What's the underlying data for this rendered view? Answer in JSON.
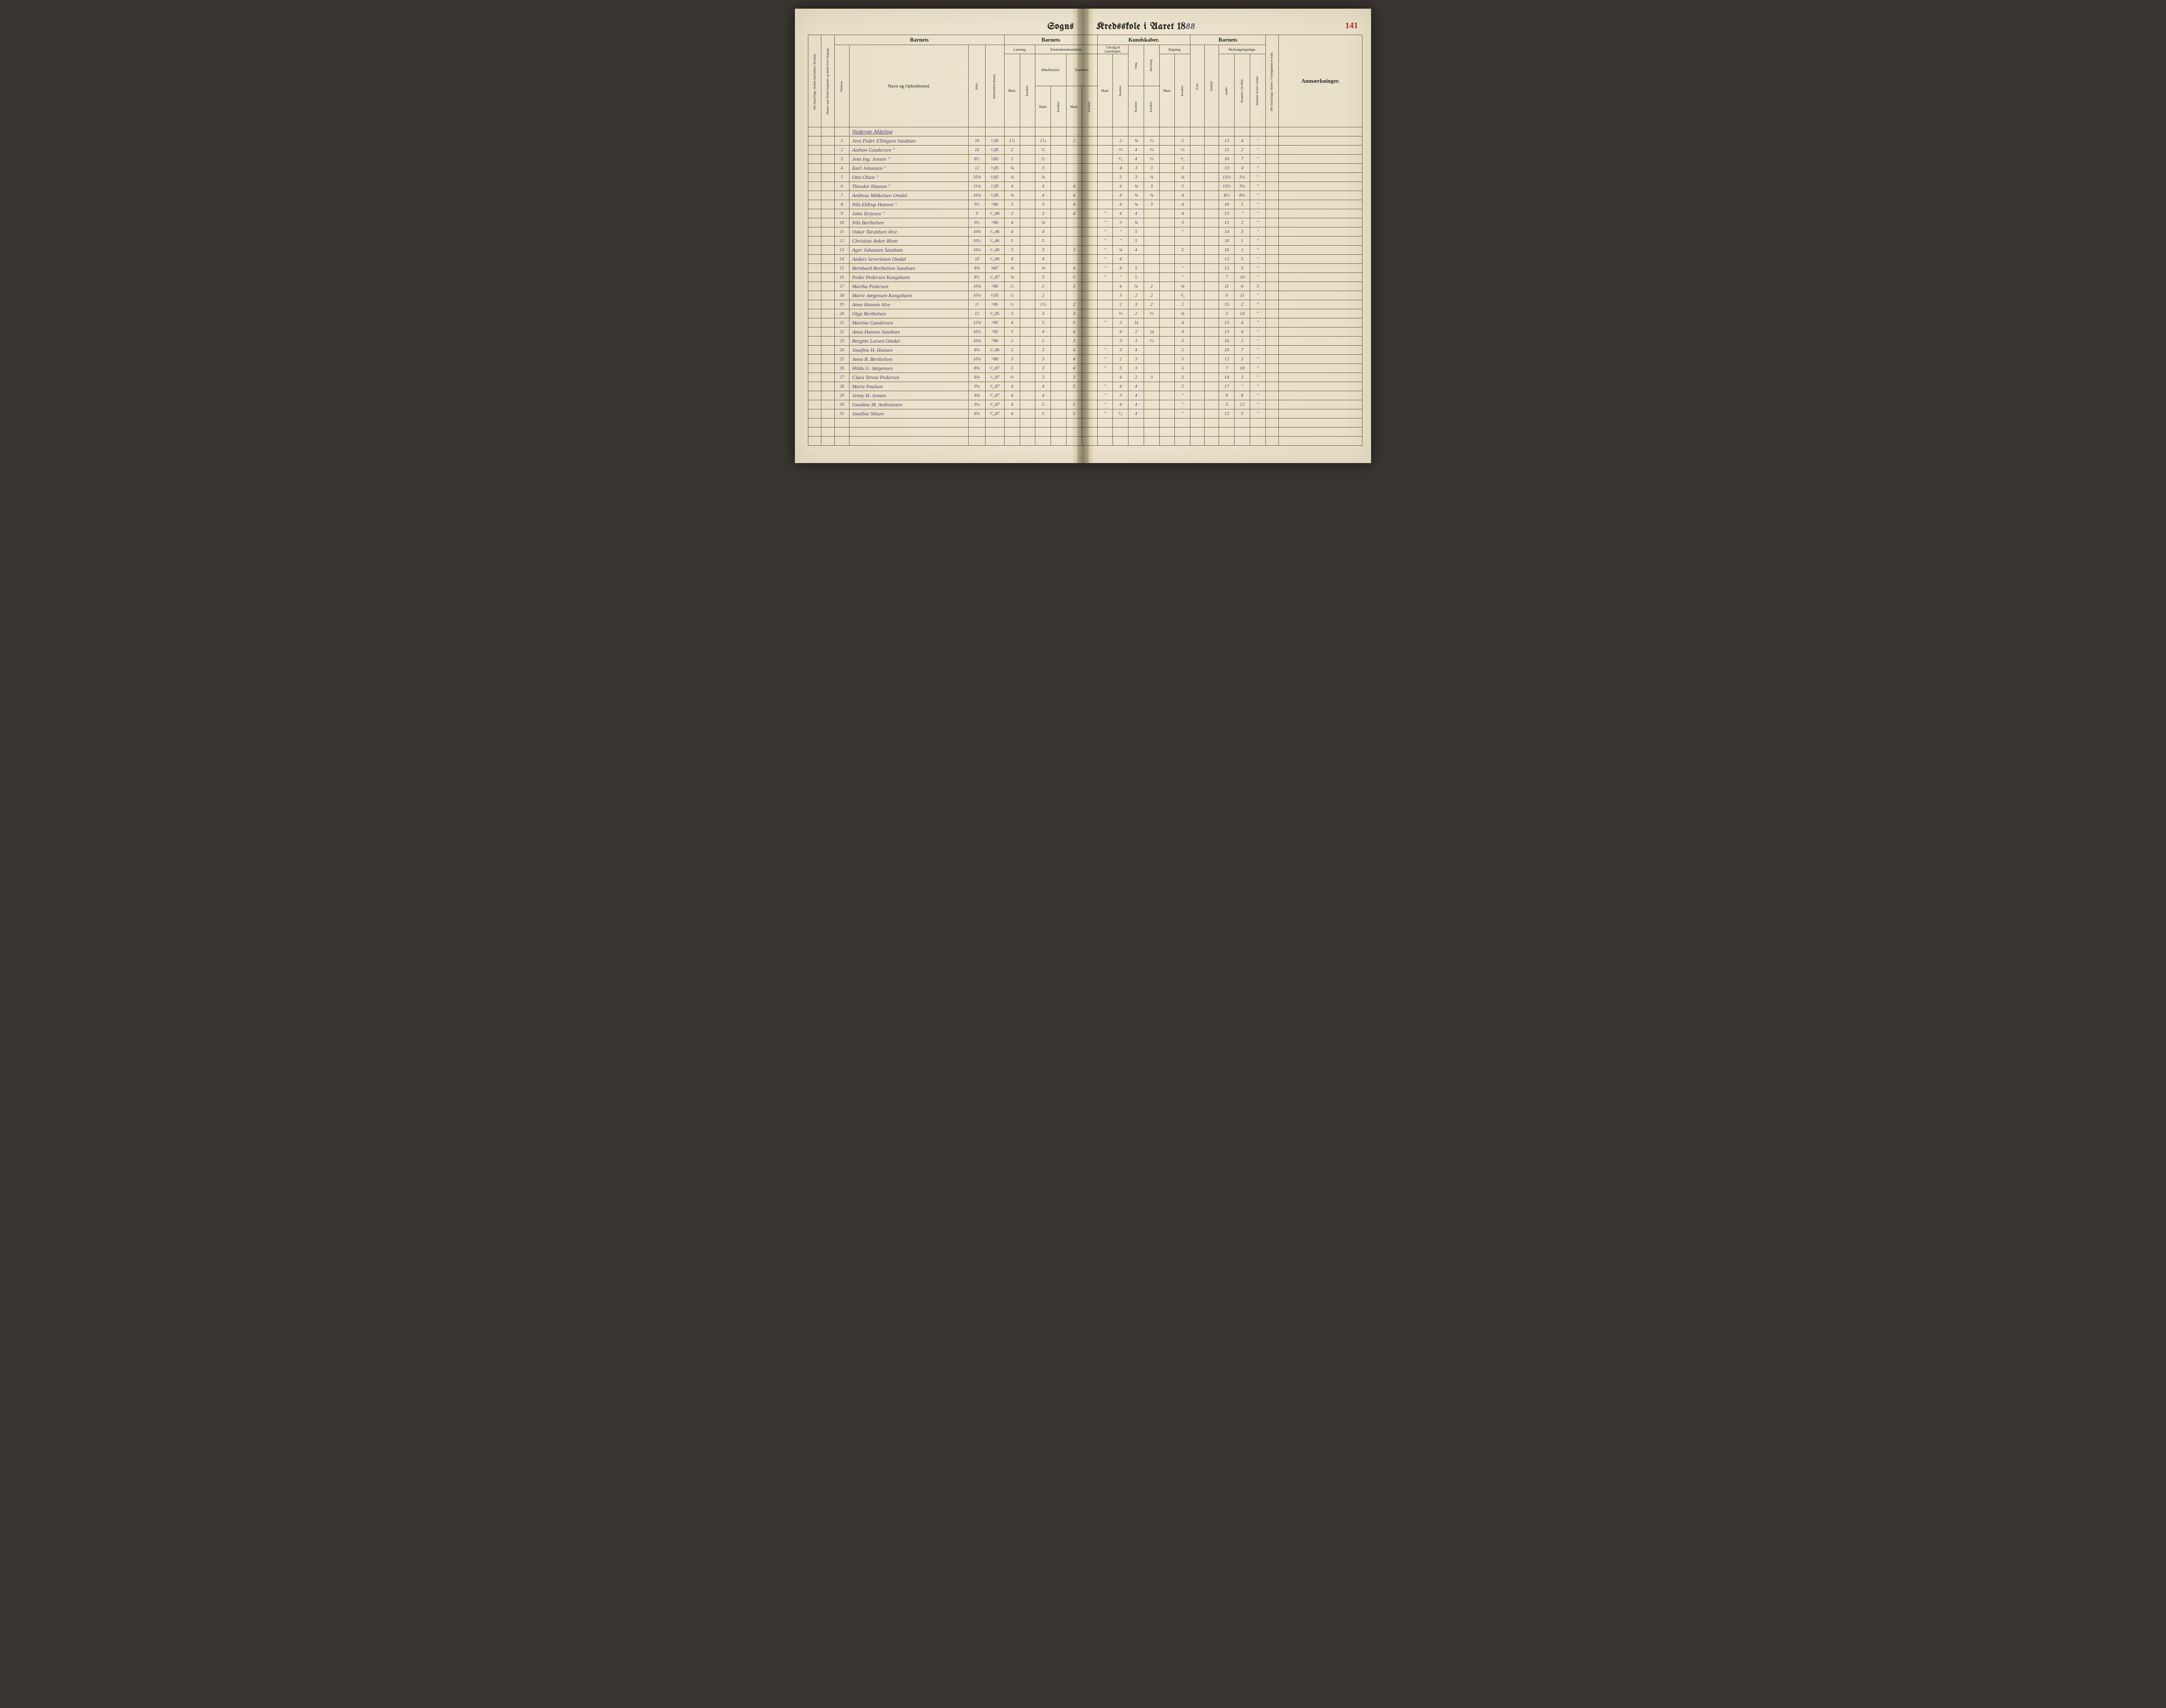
{
  "page_number": "141",
  "title_left": "Sogns",
  "title_right_prefix": "Kredsskole i Aaret 18",
  "title_year_suffix": "88",
  "headers": {
    "rot_dage": "Det Antal Dage, Skolen skal holdes i Kredsen.",
    "rot_datum": "Datum, naar Skolen begynder og slutter hver Omgang.",
    "barnets": "Barnets",
    "nummer": "Nummer.",
    "navn": "Navn og Opholdssted.",
    "alder": "Alder.",
    "indtr": "Indtrædelses-Datum.",
    "laesning": "Læsning.",
    "krist": "Kristendomskundskab.",
    "bibel": "Bibelhistorie.",
    "troes": "Troeslære.",
    "kundskaber": "Kundskaber.",
    "udvalg": "Udvalg af Læsebogen.",
    "sang": "Sang.",
    "skriv": "Skrivning",
    "regning": "Regning.",
    "maal": "Maal.",
    "karakter": "Karakter",
    "evne": "Evne.",
    "forhold": "Forhold",
    "skoles": "Skolesøgningsdage.",
    "modte": "mødte.",
    "fors_hele": "forsømte i det Hele.",
    "fors_lovl": "forsømte af lovl. Grund.",
    "rot_virk": "Det Antal Dage, Skolen i Virkeligheden er holdt.",
    "anm": "Anmærkninger."
  },
  "section_title": "Nederste Afdeling",
  "rows": [
    {
      "n": "1",
      "name": "Jens Peder Ellingsen Sandnæs",
      "age": "10",
      "date": "⁵⁄₃85",
      "l_m": "1½",
      "l_k": "",
      "b_m": "1½",
      "b_k": "",
      "t_m": "2",
      "t_k": "",
      "u_m": "",
      "u_k": "2",
      "sa": "¾",
      "sk": "⅔",
      "r_m": "",
      "r_k": "2",
      "ev": "",
      "fo": "",
      "mo": "13",
      "fh": "4",
      "fl": "\"",
      "rem": ""
    },
    {
      "n": "2",
      "name": "Anthon Gundersen    \"",
      "age": "10",
      "date": "⁵⁄₃85",
      "l_m": "2",
      "l_k": "",
      "b_m": "½",
      "b_k": "",
      "t_m": "",
      "t_k": "",
      "u_m": "",
      "u_k": "⅔",
      "sa": "4",
      "sk": "⅔",
      "r_m": "",
      "r_k": "⅔",
      "ev": "",
      "fo": "",
      "mo": "15",
      "fh": "2",
      "fl": "\"",
      "rem": ""
    },
    {
      "n": "3",
      "name": "Jens Ing. Jensen    \"",
      "age": "8½",
      "date": "½85",
      "l_m": "2",
      "l_k": "",
      "b_m": "½",
      "b_k": "",
      "t_m": "",
      "t_k": "",
      "u_m": "",
      "u_k": "⁴⁄₃",
      "sa": "4",
      "sk": "⅔",
      "r_m": "",
      "r_k": "⁴⁄₃",
      "ev": "",
      "fo": "",
      "mo": "10",
      "fh": "7",
      "fl": "\"",
      "rem": ""
    },
    {
      "n": "4",
      "name": "Karl Johansen    \"",
      "age": "12",
      "date": "³⁄₃85",
      "l_m": "¾",
      "l_k": "",
      "b_m": "3",
      "b_k": "",
      "t_m": "",
      "t_k": "",
      "u_m": "",
      "u_k": "4",
      "sa": "3",
      "sk": "3",
      "r_m": "",
      "r_k": "3",
      "ev": "",
      "fo": "",
      "mo": "13",
      "fh": "4",
      "fl": "\"",
      "rem": ""
    },
    {
      "n": "5",
      "name": "Otto Olsen    \"",
      "age": "10¾",
      "date": "³⁄₃85",
      "l_m": "¾",
      "l_k": "",
      "b_m": "¾",
      "b_k": "",
      "t_m": "",
      "t_k": "",
      "u_m": "",
      "u_k": "3",
      "sa": "3",
      "sk": "¾",
      "r_m": "",
      "r_k": "¾",
      "ev": "",
      "fo": "",
      "mo": "13½",
      "fh": "3½",
      "fl": "\"",
      "rem": ""
    },
    {
      "n": "6",
      "name": "Theodor Hansen    \"",
      "age": "11¾",
      "date": "³⁄₃85",
      "l_m": "4",
      "l_k": "",
      "b_m": "4",
      "b_k": "",
      "t_m": "4",
      "t_k": "",
      "u_m": "",
      "u_k": "4",
      "sa": "¾",
      "sk": "3",
      "r_m": "",
      "r_k": "5",
      "ev": "",
      "fo": "",
      "mo": "13½",
      "fh": "3½",
      "fl": "\"",
      "rem": ""
    },
    {
      "n": "7",
      "name": "Andreas Mikkelsen Omdal",
      "age": "10¾",
      "date": "⁵⁄₃85",
      "l_m": "¾",
      "l_k": "",
      "b_m": "4",
      "b_k": "",
      "t_m": "4",
      "t_k": "",
      "u_m": "",
      "u_k": "4",
      "sa": "¾",
      "sk": "¾",
      "r_m": "",
      "r_k": "4",
      "ev": "",
      "fo": "",
      "mo": "8½",
      "fh": "8½",
      "fl": "\"",
      "rem": ""
    },
    {
      "n": "8",
      "name": "Nils Eldrup Hansen  \"",
      "age": "9½",
      "date": "¹¹86",
      "l_m": "3",
      "l_k": "",
      "b_m": "3",
      "b_k": "",
      "t_m": "4",
      "t_k": "",
      "u_m": "",
      "u_k": "4",
      "sa": "¾",
      "sk": "3",
      "r_m": "",
      "r_k": "4",
      "ev": "",
      "fo": "",
      "mo": "16",
      "fh": "1",
      "fl": "\"",
      "rem": ""
    },
    {
      "n": "9",
      "name": "John Terjesen    \"",
      "age": "9",
      "date": "²⁄₁₁86",
      "l_m": "3",
      "l_k": "",
      "b_m": "3",
      "b_k": "",
      "t_m": "4",
      "t_k": "",
      "u_m": "\"",
      "u_k": "4",
      "sa": "4",
      "sk": "",
      "r_m": "",
      "r_k": "4",
      "ev": "",
      "fo": "",
      "mo": "13",
      "fh": "\"",
      "fl": "\"",
      "rem": ""
    },
    {
      "n": "10",
      "name": "Nils Berthelsen",
      "age": "9½",
      "date": "¹¹86",
      "l_m": "4",
      "l_k": "",
      "b_m": "¾",
      "b_k": "",
      "t_m": "",
      "t_k": "",
      "u_m": "\"",
      "u_k": "3",
      "sa": "¾",
      "sk": "",
      "r_m": "",
      "r_k": "3",
      "ev": "",
      "fo": "",
      "mo": "15",
      "fh": "2",
      "fl": "\"",
      "rem": ""
    },
    {
      "n": "11",
      "name": "Oskar Taraldsen Alve",
      "age": "10¾",
      "date": "²⁄₁₁86",
      "l_m": "4",
      "l_k": "",
      "b_m": "4",
      "b_k": "",
      "t_m": "",
      "t_k": "",
      "u_m": "\"",
      "u_k": "\"",
      "sa": "5",
      "sk": "",
      "r_m": "",
      "r_k": "\"",
      "ev": "",
      "fo": "",
      "mo": "14",
      "fh": "3",
      "fl": "\"",
      "rem": ""
    },
    {
      "n": "12",
      "name": "Christian Anker Blom",
      "age": "10½",
      "date": "²⁄₁₁86",
      "l_m": "5",
      "l_k": "",
      "b_m": "5",
      "b_k": "",
      "t_m": "",
      "t_k": "",
      "u_m": "\"",
      "u_k": "\"",
      "sa": "5",
      "sk": "",
      "r_m": "",
      "r_k": "",
      "ev": "",
      "fo": "",
      "mo": "16",
      "fh": "1",
      "fl": "\"",
      "rem": ""
    },
    {
      "n": "13",
      "name": "Ager Johansen Sandnæs",
      "age": "10¼",
      "date": "²⁄₁₁86",
      "l_m": "3",
      "l_k": "",
      "b_m": "3",
      "b_k": "",
      "t_m": "3",
      "t_k": "",
      "u_m": "\"",
      "u_k": "¾",
      "sa": "4",
      "sk": "",
      "r_m": "",
      "r_k": "5",
      "ev": "",
      "fo": "",
      "mo": "16",
      "fh": "1",
      "fl": "\"",
      "rem": ""
    },
    {
      "n": "14",
      "name": "Anders Severinsen Omdal",
      "age": "10",
      "date": "²⁄₁₁86",
      "l_m": "4",
      "l_k": "",
      "b_m": "4",
      "b_k": "",
      "t_m": "",
      "t_k": "",
      "u_m": "\"",
      "u_k": "4",
      "sa": "",
      "sk": "",
      "r_m": "",
      "r_k": "",
      "ev": "",
      "fo": "",
      "mo": "12",
      "fh": "5",
      "fl": "\"",
      "rem": ""
    },
    {
      "n": "15",
      "name": "Bernhard Berthelsen Sandnæs",
      "age": "8¾",
      "date": "¾87",
      "l_m": "¾",
      "l_k": "",
      "b_m": "¾",
      "b_k": "",
      "t_m": "4",
      "t_k": "",
      "u_m": "\"",
      "u_k": "4",
      "sa": "5",
      "sk": "",
      "r_m": "",
      "r_k": "\"",
      "ev": "",
      "fo": "",
      "mo": "12",
      "fh": "5",
      "fl": "\"",
      "rem": ""
    },
    {
      "n": "16",
      "name": "Peder Pedersen Kongshavn",
      "age": "8½",
      "date": "²⁄₁₁87",
      "l_m": "¾",
      "l_k": "",
      "b_m": "3",
      "b_k": "",
      "t_m": "5",
      "t_k": "",
      "u_m": "\"",
      "u_k": "\"",
      "sa": "5",
      "sk": "",
      "r_m": "",
      "r_k": "\"",
      "ev": "",
      "fo": "",
      "mo": "7",
      "fh": "10",
      "fl": "\"",
      "rem": ""
    },
    {
      "n": "17",
      "name": "Martha Pedersen",
      "age": "10¾",
      "date": "¹¹86",
      "l_m": "½",
      "l_k": "",
      "b_m": "2",
      "b_k": "",
      "t_m": "3",
      "t_k": "",
      "u_m": "",
      "u_k": "4",
      "sa": "⅞",
      "sk": "2",
      "r_m": "",
      "r_k": "¾",
      "ev": "",
      "fo": "",
      "mo": "11",
      "fh": "6",
      "fl": "3",
      "rem": ""
    },
    {
      "n": "18",
      "name": "Marie Jørgensen Kongshavn",
      "age": "10¼",
      "date": "³⁄₃85",
      "l_m": "½",
      "l_k": "",
      "b_m": "2",
      "b_k": "",
      "t_m": "",
      "t_k": "",
      "u_m": "",
      "u_k": "3",
      "sa": "2",
      "sk": "2",
      "r_m": "",
      "r_k": "⁴⁄₃",
      "ev": "",
      "fo": "",
      "mo": "6",
      "fh": "11",
      "fl": "\"",
      "rem": ""
    },
    {
      "n": "19",
      "name": "Anne Hansen Alve",
      "age": "11",
      "date": "¹¹85",
      "l_m": "½",
      "l_k": "",
      "b_m": "1½",
      "b_k": "",
      "t_m": "2",
      "t_k": "",
      "u_m": "",
      "u_k": "2",
      "sa": "3",
      "sk": "2",
      "r_m": "",
      "r_k": "2",
      "ev": "",
      "fo": "",
      "mo": "15",
      "fh": "2",
      "fl": "\"",
      "rem": ""
    },
    {
      "n": "20",
      "name": "Olga Berthelsen",
      "age": "12",
      "date": "³⁄₁₁85",
      "l_m": "3",
      "l_k": "",
      "b_m": "3",
      "b_k": "",
      "t_m": "3",
      "t_k": "",
      "u_m": "",
      "u_k": "⅔",
      "sa": "2",
      "sk": "⅔",
      "r_m": "",
      "r_k": "¾",
      "ev": "",
      "fo": "",
      "mo": "3",
      "fh": "14",
      "fl": "\"",
      "rem": ""
    },
    {
      "n": "21",
      "name": "Martine Gundersen",
      "age": "12¾",
      "date": "¹¹85",
      "l_m": "4",
      "l_k": "",
      "b_m": "5",
      "b_k": "",
      "t_m": "5",
      "t_k": "",
      "u_m": "\"",
      "u_k": "3",
      "sa": "⅕",
      "sk": "",
      "r_m": "",
      "r_k": "4",
      "ev": "",
      "fo": "",
      "mo": "13",
      "fh": "4",
      "fl": "\"",
      "rem": ""
    },
    {
      "n": "22",
      "name": "Anna Hansen Sandnæs",
      "age": "10¼",
      "date": "¹¹85",
      "l_m": "3",
      "l_k": "",
      "b_m": "4",
      "b_k": "",
      "t_m": "4",
      "t_k": "",
      "u_m": "",
      "u_k": "4",
      "sa": "2",
      "sk": "⅕",
      "r_m": "",
      "r_k": "4",
      "ev": "",
      "fo": "",
      "mo": "13",
      "fh": "4",
      "fl": "\"",
      "rem": ""
    },
    {
      "n": "23",
      "name": "Bergitte Larsen Omdal",
      "age": "10¾",
      "date": "¹¹86",
      "l_m": "2",
      "l_k": "",
      "b_m": "2",
      "b_k": "",
      "t_m": "3",
      "t_k": "",
      "u_m": "",
      "u_k": "3",
      "sa": "3",
      "sk": "⅓",
      "r_m": "",
      "r_k": "3",
      "ev": "",
      "fo": "",
      "mo": "16",
      "fh": "1",
      "fl": "\"",
      "rem": ""
    },
    {
      "n": "24",
      "name": "Josefine H. Hansen",
      "age": "8¾",
      "date": "²⁄₁₁86",
      "l_m": "3",
      "l_k": "",
      "b_m": "3",
      "b_k": "",
      "t_m": "4",
      "t_k": "",
      "u_m": "\"",
      "u_k": "3",
      "sa": "4",
      "sk": "",
      "r_m": "",
      "r_k": "5",
      "ev": "",
      "fo": "",
      "mo": "10",
      "fh": "7",
      "fl": "\"",
      "rem": ""
    },
    {
      "n": "25",
      "name": "Anna B. Berthelsen",
      "age": "10¼",
      "date": "¹¹86",
      "l_m": "3",
      "l_k": "",
      "b_m": "3",
      "b_k": "",
      "t_m": "4",
      "t_k": "",
      "u_m": "\"",
      "u_k": "2",
      "sa": "3",
      "sk": "",
      "r_m": "",
      "r_k": "5",
      "ev": "",
      "fo": "",
      "mo": "12",
      "fh": "5",
      "fl": "\"",
      "rem": ""
    },
    {
      "n": "26",
      "name": "Hilda G. Jørgensen",
      "age": "8¾",
      "date": "²⁄₁₁87",
      "l_m": "3",
      "l_k": "",
      "b_m": "3",
      "b_k": "",
      "t_m": "4",
      "t_k": "",
      "u_m": "\"",
      "u_k": "3",
      "sa": "3",
      "sk": "",
      "r_m": "",
      "r_k": "5",
      "ev": "",
      "fo": "",
      "mo": "7",
      "fh": "10",
      "fl": "\"",
      "rem": ""
    },
    {
      "n": "27",
      "name": "Clara Terese Pedersen",
      "age": "8¾",
      "date": "²⁄₁₁87",
      "l_m": "⅔",
      "l_k": "",
      "b_m": "3",
      "b_k": "",
      "t_m": "3",
      "t_k": "",
      "u_m": "",
      "u_k": "4",
      "sa": "2",
      "sk": "3",
      "r_m": "",
      "r_k": "3",
      "ev": "",
      "fo": "",
      "mo": "14",
      "fh": "3",
      "fl": "\"",
      "rem": ""
    },
    {
      "n": "28",
      "name": "Marie Paulsen",
      "age": "9¼",
      "date": "³⁄₁₁87",
      "l_m": "4",
      "l_k": "",
      "b_m": "4",
      "b_k": "",
      "t_m": "5",
      "t_k": "",
      "u_m": "\"",
      "u_k": "4",
      "sa": "4",
      "sk": "",
      "r_m": "",
      "r_k": "5",
      "ev": "",
      "fo": "",
      "mo": "17",
      "fh": "\"",
      "fl": "\"",
      "rem": ""
    },
    {
      "n": "29",
      "name": "Jenny H. Jensen",
      "age": "8¾",
      "date": "²⁄₁₁87",
      "l_m": "4",
      "l_k": "",
      "b_m": "4",
      "b_k": "",
      "t_m": "",
      "t_k": "",
      "u_m": "\"",
      "u_k": "3",
      "sa": "4",
      "sk": "",
      "r_m": "",
      "r_k": "\"",
      "ev": "",
      "fo": "",
      "mo": "9",
      "fh": "8",
      "fl": "\"",
      "rem": ""
    },
    {
      "n": "30",
      "name": "Gundine M. Andreassen",
      "age": "9¼",
      "date": "³⁄₁₁87",
      "l_m": "4",
      "l_k": "",
      "b_m": "5",
      "b_k": "",
      "t_m": "5",
      "t_k": "",
      "u_m": "\"",
      "u_k": "4",
      "sa": "4",
      "sk": "",
      "r_m": "",
      "r_k": "\"",
      "ev": "",
      "fo": "",
      "mo": "5",
      "fh": "12",
      "fl": "\"",
      "rem": ""
    },
    {
      "n": "31",
      "name": "Josefine Nilsen",
      "age": "8¾",
      "date": "³⁄₁₁87",
      "l_m": "4",
      "l_k": "",
      "b_m": "5",
      "b_k": "",
      "t_m": "5",
      "t_k": "",
      "u_m": "\"",
      "u_k": "⁵⁄₄",
      "sa": "4",
      "sk": "",
      "r_m": "",
      "r_k": "\"",
      "ev": "",
      "fo": "",
      "mo": "12",
      "fh": "5",
      "fl": "\"",
      "rem": ""
    }
  ]
}
